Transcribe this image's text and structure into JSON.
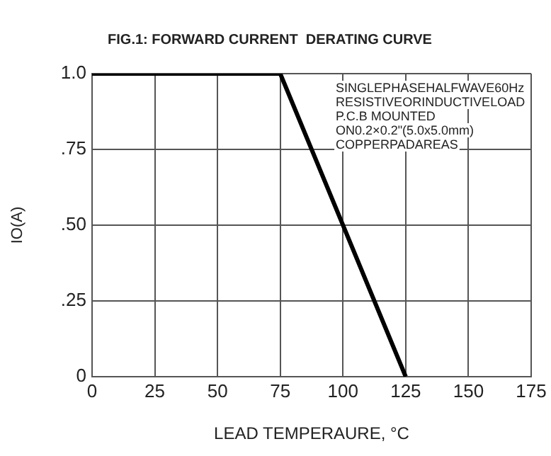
{
  "chart_data": {
    "type": "line",
    "title": "FIG.1: FORWARD CURRENT  DERATING CURVE",
    "xlabel": "LEAD TEMPERAURE, °C",
    "ylabel": "IO(A)",
    "x": [
      0,
      75,
      125
    ],
    "series": [
      {
        "color": "#000000",
        "values": [
          1,
          1,
          0
        ]
      }
    ],
    "xlim": [
      0,
      175
    ],
    "xticks": [
      0,
      25,
      50,
      75,
      100,
      125,
      150,
      175
    ],
    "ylim": [
      0,
      1
    ],
    "yticks": [
      0,
      {
        "value": 0.25,
        "label": ".25"
      },
      {
        "value": 0.5,
        "label": ".50"
      },
      {
        "value": 0.75,
        "label": ".75"
      },
      {
        "value": 1,
        "label": "1.0"
      }
    ],
    "annotations": [
      "SINGLEPHASEHALFWAVE60Hz",
      "RESISTIVEORINDUCTIVELOAD",
      "P.C.B MOUNTED",
      "ON0.2×0.2\"(5.0x5.0mm)",
      "COPPERPADAREAS"
    ],
    "grid": true,
    "legend": false,
    "marker": "none",
    "line_style": "solid"
  }
}
